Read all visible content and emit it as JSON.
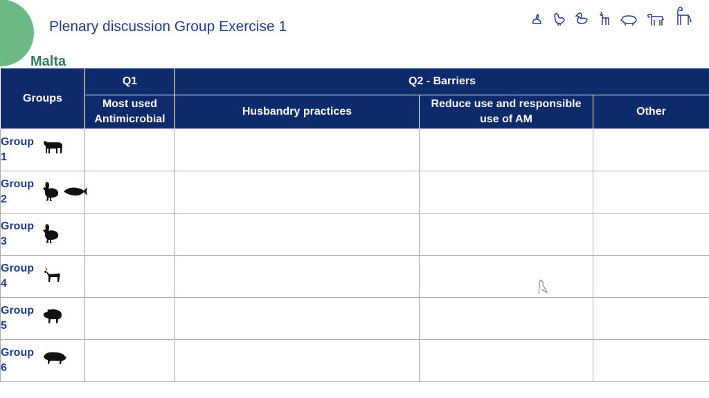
{
  "page": {
    "title": "Plenary discussion Group Exercise 1",
    "country": "Malta"
  },
  "header_icons": [
    "rabbit-icon",
    "chicken-icon",
    "duck-icon",
    "goat-icon",
    "pig-icon",
    "cow-icon",
    "horse-icon"
  ],
  "table": {
    "groups_header": "Groups",
    "q1_header": "Q1",
    "q2_header": "Q2 - Barriers",
    "col_q1_sub": "Most used Antimicrobial",
    "col_husbandry": "Husbandry practices",
    "col_reduce": "Reduce use and responsible use of AM",
    "col_other": "Other",
    "rows": [
      {
        "label": "Group",
        "num": "1",
        "animals": [
          "cow-icon"
        ]
      },
      {
        "label": "Group",
        "num": "2",
        "animals": [
          "chicken-icon",
          "fish-icon"
        ]
      },
      {
        "label": "Group",
        "num": "3",
        "animals": [
          "chicken-icon"
        ]
      },
      {
        "label": "Group",
        "num": "4",
        "animals": [
          "goat-icon"
        ]
      },
      {
        "label": "Group",
        "num": "5",
        "animals": [
          "sheep-icon"
        ]
      },
      {
        "label": "Group",
        "num": "6",
        "animals": [
          "pig-icon"
        ]
      }
    ]
  },
  "colors": {
    "header_bg": "#0d2a6b",
    "title_blue": "#1f3f8a",
    "country_green": "#2e7d5b",
    "circle_green": "#6cb887"
  }
}
